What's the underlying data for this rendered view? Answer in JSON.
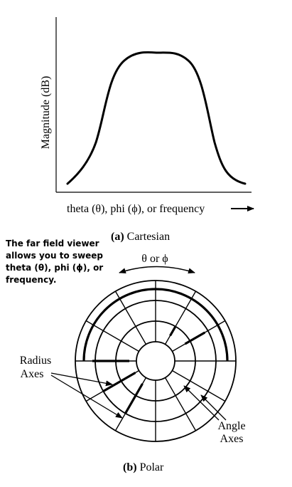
{
  "cartesian": {
    "ylabel": "Magnitude (dB)",
    "xlabel": "theta (θ), phi (ϕ), or frequency",
    "caption_letter": "(a)",
    "caption_text": "Cartesian"
  },
  "polar": {
    "note_lines": [
      "The far field viewer",
      "allows you to sweep",
      "theta (θ), phi (ϕ), or",
      "frequency."
    ],
    "sweep_label": "θ or ϕ",
    "radius_label_lines": [
      "Radius",
      "Axes"
    ],
    "angle_label_lines": [
      "Angle",
      "Axes"
    ],
    "caption_letter": "(b)",
    "caption_text": "Polar"
  }
}
